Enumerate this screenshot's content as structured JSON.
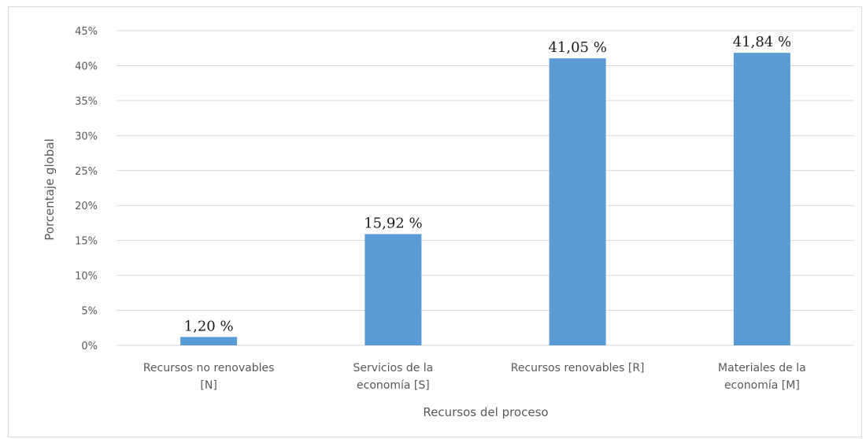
{
  "chart_data": {
    "type": "bar",
    "categories": [
      [
        "Recursos no renovables",
        "[N]"
      ],
      [
        "Servicios de la",
        "economía [S]"
      ],
      [
        "Recursos renovables [R]"
      ],
      [
        "Materiales de la",
        "economía [M]"
      ]
    ],
    "values": [
      1.2,
      15.92,
      41.05,
      41.84
    ],
    "data_labels": [
      "1,20 %",
      "15,92 %",
      "41,05 %",
      "41,84 %"
    ],
    "xlabel": "Recursos del proceso",
    "ylabel": "Porcentaje global",
    "ylim": [
      0,
      45
    ],
    "yticks": [
      0,
      5,
      10,
      15,
      20,
      25,
      30,
      35,
      40,
      45
    ],
    "ytick_labels": [
      "0%",
      "5%",
      "10%",
      "15%",
      "20%",
      "25%",
      "30%",
      "35%",
      "40%",
      "45%"
    ],
    "grid": true,
    "legend": "none",
    "colors": {
      "bar": "#5b9bd5",
      "grid": "#d9d9d9",
      "axis_text": "#595959"
    }
  }
}
